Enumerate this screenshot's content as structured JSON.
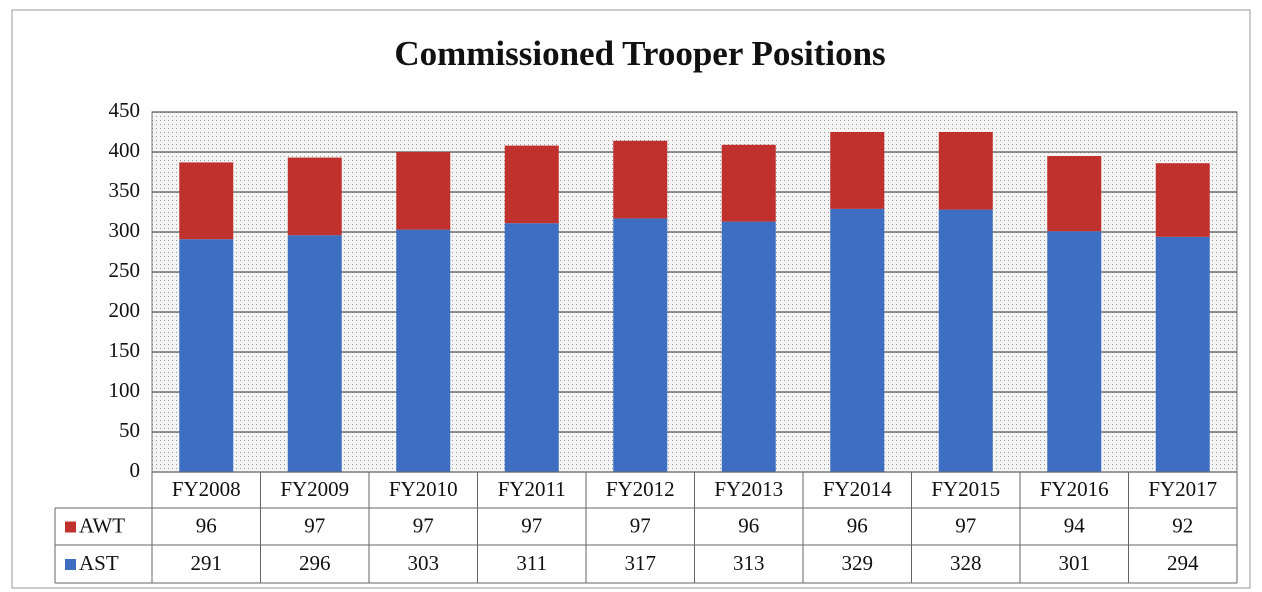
{
  "chart_data": {
    "type": "bar",
    "stacked": true,
    "title": "Commissioned Trooper Positions",
    "categories": [
      "FY2008",
      "FY2009",
      "FY2010",
      "FY2011",
      "FY2012",
      "FY2013",
      "FY2014",
      "FY2015",
      "FY2016",
      "FY2017"
    ],
    "series": [
      {
        "name": "AWT",
        "color": "#c0312d",
        "values": [
          96,
          97,
          97,
          97,
          97,
          96,
          96,
          97,
          94,
          92
        ]
      },
      {
        "name": "AST",
        "color": "#3d6ec2",
        "values": [
          291,
          296,
          303,
          311,
          317,
          313,
          329,
          328,
          301,
          294
        ]
      }
    ],
    "ylim": [
      0,
      450
    ],
    "yticks": [
      0,
      50,
      100,
      150,
      200,
      250,
      300,
      350,
      400,
      450
    ],
    "grid": true
  }
}
